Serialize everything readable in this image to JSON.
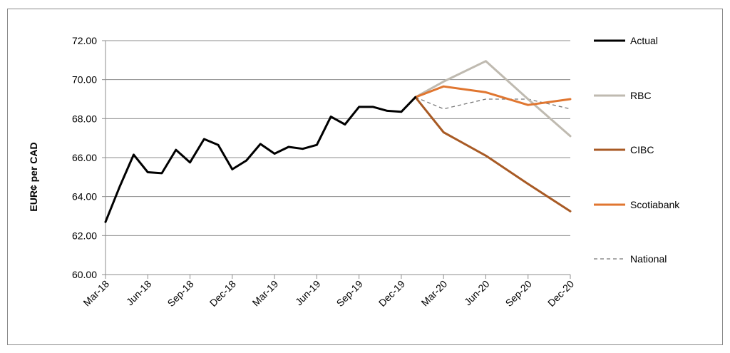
{
  "chart_data": {
    "type": "line",
    "ylabel": "EUR¢ per CAD",
    "ylim": [
      60,
      72
    ],
    "yticks": [
      "60.00",
      "62.00",
      "64.00",
      "66.00",
      "68.00",
      "70.00",
      "72.00"
    ],
    "xtick_labels": [
      "Mar-18",
      "Jun-18",
      "Sep-18",
      "Dec-18",
      "Mar-19",
      "Jun-19",
      "Sep-19",
      "Dec-19",
      "Mar-20",
      "Jun-20",
      "Sep-20",
      "Dec-20"
    ],
    "grid": "horizontal",
    "legend": "right",
    "series": [
      {
        "name": "Actual",
        "color": "#000000",
        "style": "solid",
        "x": [
          "Mar-18",
          "Apr-18",
          "May-18",
          "Jun-18",
          "Jul-18",
          "Aug-18",
          "Sep-18",
          "Oct-18",
          "Nov-18",
          "Dec-18",
          "Jan-19",
          "Feb-19",
          "Mar-19",
          "Apr-19",
          "May-19",
          "Jun-19",
          "Jul-19",
          "Aug-19",
          "Sep-19",
          "Oct-19",
          "Nov-19",
          "Dec-19",
          "Jan-20"
        ],
        "values": [
          62.7,
          64.5,
          66.15,
          65.25,
          65.2,
          66.4,
          65.75,
          66.95,
          66.65,
          65.4,
          65.85,
          66.7,
          66.2,
          66.55,
          66.45,
          66.65,
          68.1,
          67.7,
          68.6,
          68.6,
          68.4,
          68.35,
          69.1
        ]
      },
      {
        "name": "RBC",
        "color": "#bfbab0",
        "style": "solid",
        "x": [
          "Jan-20",
          "Mar-20",
          "Jun-20",
          "Sep-20",
          "Dec-20"
        ],
        "values": [
          69.1,
          69.9,
          70.95,
          69.0,
          67.1
        ]
      },
      {
        "name": "CIBC",
        "color": "#a85a24",
        "style": "solid",
        "x": [
          "Jan-20",
          "Mar-20",
          "Jun-20",
          "Sep-20",
          "Dec-20"
        ],
        "values": [
          69.1,
          67.3,
          66.1,
          64.65,
          63.25
        ]
      },
      {
        "name": "Scotiabank",
        "color": "#e07630",
        "style": "solid",
        "x": [
          "Jan-20",
          "Mar-20",
          "Jun-20",
          "Sep-20",
          "Dec-20"
        ],
        "values": [
          69.1,
          69.65,
          69.35,
          68.7,
          69.0
        ]
      },
      {
        "name": "National",
        "color": "#777777",
        "style": "dashed",
        "x": [
          "Jan-20",
          "Mar-20",
          "Jun-20",
          "Sep-20",
          "Dec-20"
        ],
        "values": [
          69.1,
          68.5,
          69.0,
          69.0,
          68.5
        ]
      }
    ]
  }
}
